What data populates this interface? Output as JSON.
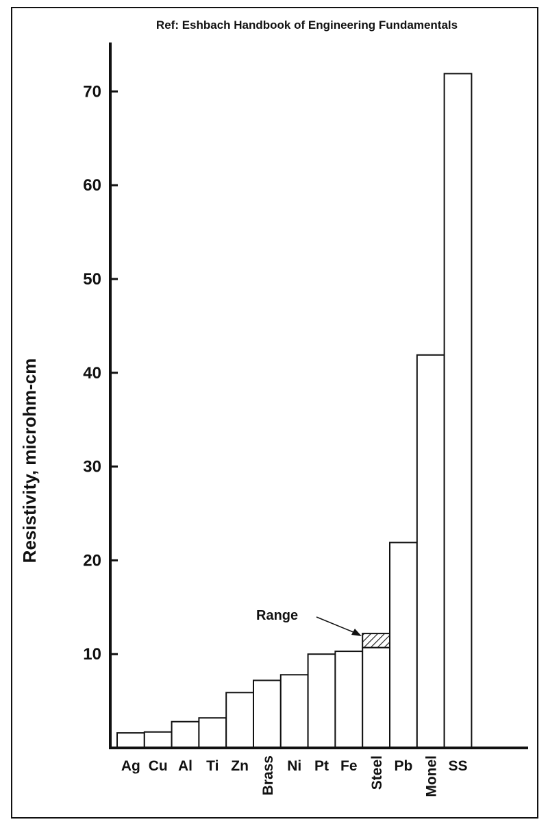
{
  "chart_data": {
    "type": "bar",
    "reference": "Ref: Eshbach Handbook of Engineering Fundamentals",
    "ylabel": "Resistivity, microhm-cm",
    "xlabel": "",
    "ylim": [
      0,
      75
    ],
    "yticks": [
      10,
      20,
      30,
      40,
      50,
      60,
      70
    ],
    "categories": [
      "Ag",
      "Cu",
      "Al",
      "Ti",
      "Zn",
      "Brass",
      "Ni",
      "Pt",
      "Fe",
      "Steel",
      "Pb",
      "Monel",
      "SS"
    ],
    "vertical_labels": [
      "Brass",
      "Steel",
      "Monel"
    ],
    "values": [
      1.6,
      1.7,
      2.8,
      3.2,
      5.9,
      7.2,
      7.8,
      10.0,
      10.3,
      10.7,
      21.9,
      41.9,
      71.9
    ],
    "range": {
      "category": "Steel",
      "low": 10.7,
      "high": 12.2,
      "label": "Range"
    },
    "grid": false
  }
}
